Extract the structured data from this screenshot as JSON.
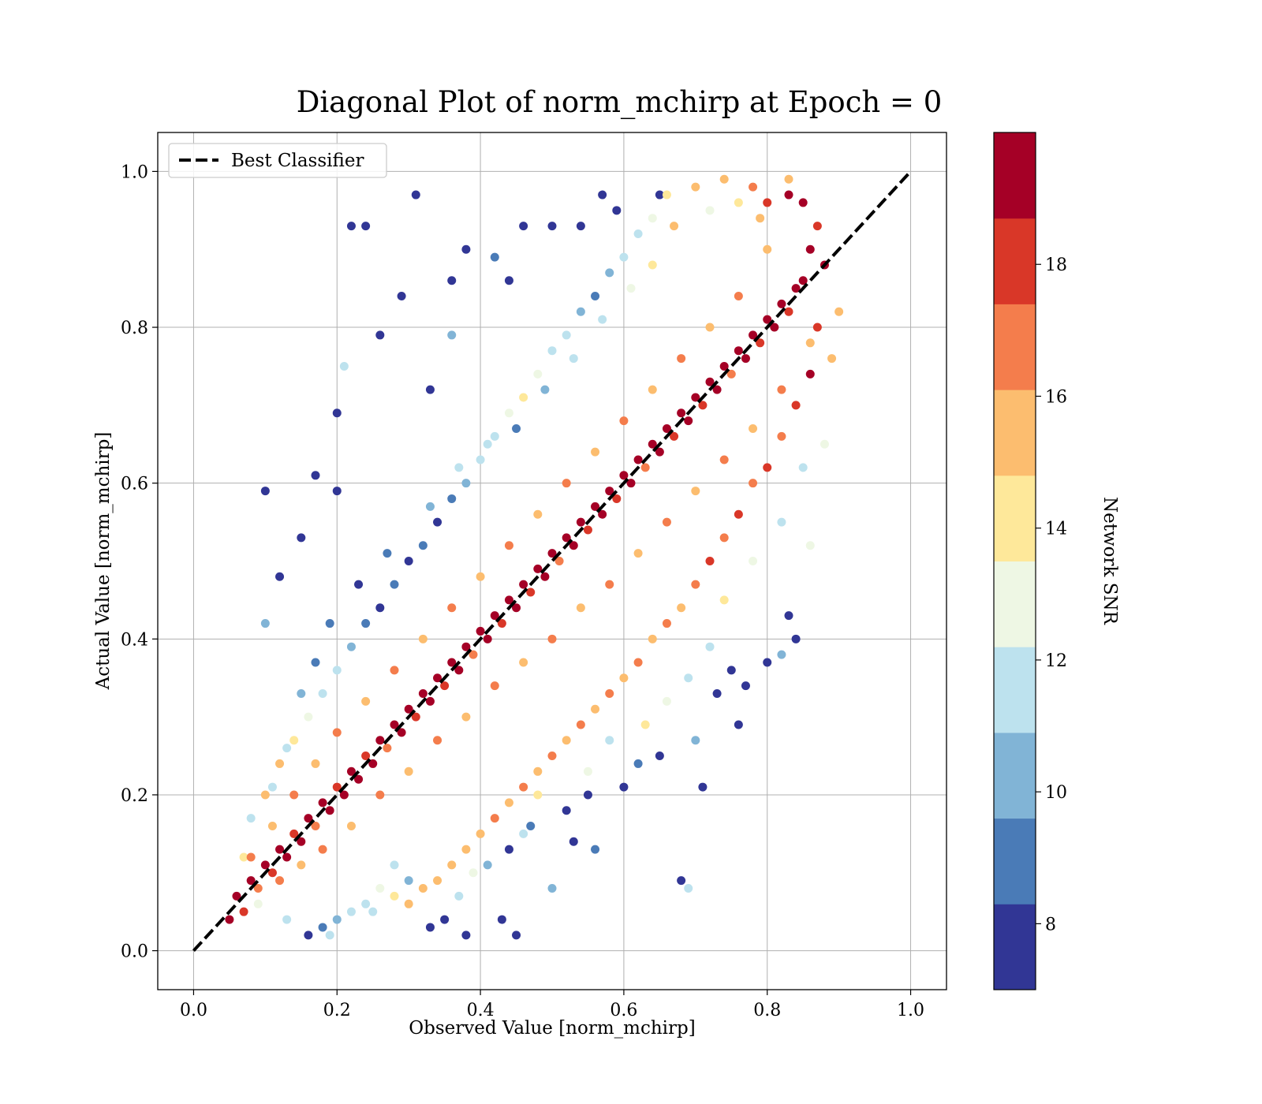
{
  "chart_data": {
    "type": "scatter",
    "title": "Diagonal Plot of norm_mchirp at Epoch = 0",
    "xlabel": "Observed Value [norm_mchirp]",
    "ylabel": "Actual Value [norm_mchirp]",
    "xlim": [
      -0.05,
      1.05
    ],
    "ylim": [
      -0.05,
      1.05
    ],
    "xticks": [
      "0.0",
      "0.2",
      "0.4",
      "0.6",
      "0.8",
      "1.0"
    ],
    "yticks": [
      "0.0",
      "0.2",
      "0.4",
      "0.6",
      "0.8",
      "1.0"
    ],
    "grid": true,
    "legend": {
      "placement": "top-left",
      "entries": [
        "Best Classifier"
      ]
    },
    "reference_line": {
      "name": "Best Classifier",
      "style": "dashed",
      "color": "#000000",
      "x": [
        0.0,
        1.0
      ],
      "y": [
        0.0,
        1.0
      ]
    },
    "colorbar": {
      "label": "Network SNR",
      "range": [
        7,
        20
      ],
      "ticks": [
        "8",
        "10",
        "12",
        "14",
        "16",
        "18"
      ],
      "tick_values": [
        8,
        10,
        12,
        14,
        16,
        18
      ],
      "levels": [
        {
          "from": 7.0,
          "to": 8.3,
          "color": "#313695"
        },
        {
          "from": 8.3,
          "to": 9.6,
          "color": "#4a7bb7"
        },
        {
          "from": 9.6,
          "to": 10.9,
          "color": "#81b4d6"
        },
        {
          "from": 10.9,
          "to": 12.2,
          "color": "#bde2ee"
        },
        {
          "from": 12.2,
          "to": 13.5,
          "color": "#eef7e4"
        },
        {
          "from": 13.5,
          "to": 14.8,
          "color": "#fee89a"
        },
        {
          "from": 14.8,
          "to": 16.1,
          "color": "#fcbd6f"
        },
        {
          "from": 16.1,
          "to": 17.4,
          "color": "#f47d4c"
        },
        {
          "from": 17.4,
          "to": 18.7,
          "color": "#d93728"
        },
        {
          "from": 18.7,
          "to": 20.0,
          "color": "#a50026"
        }
      ]
    },
    "points": [
      [
        0.05,
        0.04,
        19
      ],
      [
        0.06,
        0.07,
        19
      ],
      [
        0.07,
        0.05,
        18
      ],
      [
        0.08,
        0.09,
        19
      ],
      [
        0.09,
        0.08,
        17
      ],
      [
        0.1,
        0.11,
        19
      ],
      [
        0.11,
        0.1,
        18
      ],
      [
        0.12,
        0.13,
        19
      ],
      [
        0.13,
        0.12,
        19
      ],
      [
        0.14,
        0.15,
        18
      ],
      [
        0.15,
        0.14,
        19
      ],
      [
        0.16,
        0.17,
        19
      ],
      [
        0.17,
        0.16,
        17
      ],
      [
        0.18,
        0.19,
        19
      ],
      [
        0.19,
        0.18,
        19
      ],
      [
        0.2,
        0.21,
        18
      ],
      [
        0.21,
        0.2,
        19
      ],
      [
        0.22,
        0.23,
        19
      ],
      [
        0.23,
        0.22,
        19
      ],
      [
        0.24,
        0.25,
        18
      ],
      [
        0.25,
        0.24,
        19
      ],
      [
        0.26,
        0.27,
        19
      ],
      [
        0.27,
        0.26,
        17
      ],
      [
        0.28,
        0.29,
        19
      ],
      [
        0.29,
        0.28,
        19
      ],
      [
        0.3,
        0.31,
        19
      ],
      [
        0.31,
        0.3,
        18
      ],
      [
        0.32,
        0.33,
        19
      ],
      [
        0.33,
        0.32,
        19
      ],
      [
        0.34,
        0.35,
        19
      ],
      [
        0.35,
        0.34,
        18
      ],
      [
        0.36,
        0.37,
        19
      ],
      [
        0.37,
        0.36,
        19
      ],
      [
        0.38,
        0.39,
        19
      ],
      [
        0.39,
        0.38,
        17
      ],
      [
        0.4,
        0.41,
        19
      ],
      [
        0.41,
        0.4,
        19
      ],
      [
        0.42,
        0.43,
        19
      ],
      [
        0.43,
        0.42,
        18
      ],
      [
        0.44,
        0.45,
        19
      ],
      [
        0.45,
        0.44,
        19
      ],
      [
        0.46,
        0.47,
        19
      ],
      [
        0.47,
        0.46,
        18
      ],
      [
        0.48,
        0.49,
        19
      ],
      [
        0.49,
        0.48,
        19
      ],
      [
        0.5,
        0.51,
        19
      ],
      [
        0.51,
        0.5,
        17
      ],
      [
        0.52,
        0.53,
        19
      ],
      [
        0.53,
        0.52,
        19
      ],
      [
        0.54,
        0.55,
        19
      ],
      [
        0.55,
        0.54,
        18
      ],
      [
        0.56,
        0.57,
        19
      ],
      [
        0.57,
        0.56,
        19
      ],
      [
        0.58,
        0.59,
        19
      ],
      [
        0.59,
        0.58,
        18
      ],
      [
        0.6,
        0.61,
        19
      ],
      [
        0.61,
        0.6,
        19
      ],
      [
        0.62,
        0.63,
        19
      ],
      [
        0.63,
        0.62,
        17
      ],
      [
        0.64,
        0.65,
        19
      ],
      [
        0.65,
        0.64,
        19
      ],
      [
        0.66,
        0.67,
        19
      ],
      [
        0.67,
        0.66,
        18
      ],
      [
        0.68,
        0.69,
        19
      ],
      [
        0.69,
        0.68,
        19
      ],
      [
        0.7,
        0.71,
        19
      ],
      [
        0.71,
        0.7,
        18
      ],
      [
        0.72,
        0.73,
        19
      ],
      [
        0.73,
        0.72,
        19
      ],
      [
        0.74,
        0.75,
        19
      ],
      [
        0.75,
        0.74,
        17
      ],
      [
        0.76,
        0.77,
        19
      ],
      [
        0.77,
        0.76,
        19
      ],
      [
        0.78,
        0.79,
        19
      ],
      [
        0.79,
        0.78,
        18
      ],
      [
        0.8,
        0.81,
        19
      ],
      [
        0.81,
        0.8,
        19
      ],
      [
        0.82,
        0.83,
        19
      ],
      [
        0.83,
        0.82,
        18
      ],
      [
        0.84,
        0.85,
        19
      ],
      [
        0.85,
        0.86,
        19
      ],
      [
        0.86,
        0.9,
        19
      ],
      [
        0.87,
        0.93,
        18
      ],
      [
        0.85,
        0.96,
        19
      ],
      [
        0.83,
        0.97,
        19
      ],
      [
        0.88,
        0.88,
        19
      ],
      [
        0.87,
        0.8,
        18
      ],
      [
        0.86,
        0.74,
        19
      ],
      [
        0.84,
        0.7,
        18
      ],
      [
        0.82,
        0.66,
        17
      ],
      [
        0.8,
        0.62,
        18
      ],
      [
        0.78,
        0.6,
        17
      ],
      [
        0.76,
        0.56,
        18
      ],
      [
        0.74,
        0.53,
        17
      ],
      [
        0.72,
        0.5,
        18
      ],
      [
        0.7,
        0.47,
        17
      ],
      [
        0.68,
        0.44,
        16
      ],
      [
        0.66,
        0.42,
        17
      ],
      [
        0.64,
        0.4,
        16
      ],
      [
        0.62,
        0.37,
        17
      ],
      [
        0.6,
        0.35,
        16
      ],
      [
        0.58,
        0.33,
        17
      ],
      [
        0.56,
        0.31,
        16
      ],
      [
        0.54,
        0.29,
        17
      ],
      [
        0.52,
        0.27,
        16
      ],
      [
        0.5,
        0.25,
        17
      ],
      [
        0.48,
        0.23,
        16
      ],
      [
        0.46,
        0.21,
        17
      ],
      [
        0.44,
        0.19,
        16
      ],
      [
        0.42,
        0.17,
        17
      ],
      [
        0.4,
        0.15,
        16
      ],
      [
        0.38,
        0.13,
        15
      ],
      [
        0.36,
        0.11,
        16
      ],
      [
        0.34,
        0.09,
        15
      ],
      [
        0.32,
        0.08,
        16
      ],
      [
        0.3,
        0.06,
        15
      ],
      [
        0.28,
        0.07,
        14
      ],
      [
        0.26,
        0.08,
        13
      ],
      [
        0.24,
        0.06,
        12
      ],
      [
        0.22,
        0.05,
        11
      ],
      [
        0.2,
        0.04,
        10
      ],
      [
        0.18,
        0.03,
        9
      ],
      [
        0.16,
        0.02,
        8
      ],
      [
        0.1,
        0.2,
        16
      ],
      [
        0.12,
        0.24,
        15
      ],
      [
        0.14,
        0.27,
        14
      ],
      [
        0.16,
        0.3,
        13
      ],
      [
        0.18,
        0.33,
        12
      ],
      [
        0.2,
        0.36,
        11
      ],
      [
        0.22,
        0.39,
        10
      ],
      [
        0.24,
        0.42,
        9
      ],
      [
        0.26,
        0.44,
        8
      ],
      [
        0.28,
        0.47,
        9
      ],
      [
        0.3,
        0.5,
        8
      ],
      [
        0.32,
        0.52,
        9
      ],
      [
        0.34,
        0.55,
        8
      ],
      [
        0.36,
        0.58,
        9
      ],
      [
        0.38,
        0.6,
        10
      ],
      [
        0.4,
        0.63,
        11
      ],
      [
        0.42,
        0.66,
        12
      ],
      [
        0.44,
        0.69,
        13
      ],
      [
        0.46,
        0.71,
        14
      ],
      [
        0.48,
        0.74,
        13
      ],
      [
        0.5,
        0.77,
        12
      ],
      [
        0.52,
        0.79,
        11
      ],
      [
        0.54,
        0.82,
        10
      ],
      [
        0.56,
        0.84,
        9
      ],
      [
        0.58,
        0.87,
        10
      ],
      [
        0.6,
        0.89,
        11
      ],
      [
        0.62,
        0.92,
        12
      ],
      [
        0.64,
        0.94,
        13
      ],
      [
        0.66,
        0.97,
        14
      ],
      [
        0.7,
        0.98,
        15
      ],
      [
        0.74,
        0.99,
        16
      ],
      [
        0.78,
        0.98,
        17
      ],
      [
        0.8,
        0.96,
        18
      ],
      [
        0.1,
        0.59,
        8
      ],
      [
        0.17,
        0.61,
        8
      ],
      [
        0.2,
        0.69,
        8
      ],
      [
        0.22,
        0.93,
        8
      ],
      [
        0.24,
        0.93,
        8
      ],
      [
        0.31,
        0.97,
        8
      ],
      [
        0.38,
        0.9,
        8
      ],
      [
        0.36,
        0.86,
        8
      ],
      [
        0.29,
        0.84,
        8
      ],
      [
        0.26,
        0.79,
        8
      ],
      [
        0.33,
        0.72,
        8
      ],
      [
        0.21,
        0.75,
        11
      ],
      [
        0.2,
        0.59,
        8
      ],
      [
        0.15,
        0.53,
        8
      ],
      [
        0.12,
        0.48,
        8
      ],
      [
        0.1,
        0.42,
        10
      ],
      [
        0.44,
        0.86,
        8
      ],
      [
        0.46,
        0.93,
        8
      ],
      [
        0.5,
        0.93,
        8
      ],
      [
        0.54,
        0.93,
        8
      ],
      [
        0.57,
        0.97,
        8
      ],
      [
        0.59,
        0.95,
        8
      ],
      [
        0.65,
        0.97,
        8
      ],
      [
        0.42,
        0.89,
        9
      ],
      [
        0.36,
        0.79,
        10
      ],
      [
        0.68,
        0.09,
        8
      ],
      [
        0.69,
        0.08,
        11
      ],
      [
        0.71,
        0.21,
        8
      ],
      [
        0.76,
        0.29,
        8
      ],
      [
        0.77,
        0.34,
        8
      ],
      [
        0.8,
        0.37,
        8
      ],
      [
        0.83,
        0.43,
        8
      ],
      [
        0.84,
        0.4,
        8
      ],
      [
        0.82,
        0.38,
        10
      ],
      [
        0.75,
        0.36,
        8
      ],
      [
        0.73,
        0.33,
        8
      ],
      [
        0.7,
        0.27,
        10
      ],
      [
        0.65,
        0.25,
        8
      ],
      [
        0.62,
        0.24,
        9
      ],
      [
        0.6,
        0.21,
        8
      ],
      [
        0.55,
        0.2,
        8
      ],
      [
        0.52,
        0.18,
        8
      ],
      [
        0.53,
        0.14,
        8
      ],
      [
        0.56,
        0.13,
        9
      ],
      [
        0.5,
        0.08,
        10
      ],
      [
        0.45,
        0.02,
        8
      ],
      [
        0.43,
        0.04,
        8
      ],
      [
        0.38,
        0.02,
        8
      ],
      [
        0.35,
        0.04,
        8
      ],
      [
        0.33,
        0.03,
        8
      ],
      [
        0.3,
        0.09,
        10
      ],
      [
        0.28,
        0.11,
        12
      ],
      [
        0.44,
        0.13,
        8
      ],
      [
        0.47,
        0.16,
        9
      ],
      [
        0.41,
        0.11,
        10
      ],
      [
        0.86,
        0.52,
        13
      ],
      [
        0.88,
        0.65,
        13
      ],
      [
        0.9,
        0.82,
        15
      ],
      [
        0.89,
        0.76,
        15
      ],
      [
        0.85,
        0.62,
        12
      ],
      [
        0.82,
        0.55,
        11
      ],
      [
        0.78,
        0.5,
        13
      ],
      [
        0.74,
        0.45,
        14
      ],
      [
        0.72,
        0.39,
        12
      ],
      [
        0.69,
        0.35,
        11
      ],
      [
        0.66,
        0.32,
        13
      ],
      [
        0.63,
        0.29,
        14
      ],
      [
        0.58,
        0.27,
        12
      ],
      [
        0.55,
        0.23,
        13
      ],
      [
        0.48,
        0.2,
        14
      ],
      [
        0.46,
        0.15,
        12
      ],
      [
        0.39,
        0.1,
        13
      ],
      [
        0.37,
        0.07,
        11
      ],
      [
        0.25,
        0.05,
        12
      ],
      [
        0.19,
        0.02,
        11
      ],
      [
        0.13,
        0.04,
        12
      ],
      [
        0.09,
        0.06,
        13
      ],
      [
        0.07,
        0.12,
        14
      ],
      [
        0.08,
        0.17,
        12
      ],
      [
        0.11,
        0.21,
        11
      ],
      [
        0.13,
        0.26,
        12
      ],
      [
        0.15,
        0.33,
        10
      ],
      [
        0.17,
        0.37,
        9
      ],
      [
        0.19,
        0.42,
        9
      ],
      [
        0.23,
        0.47,
        8
      ],
      [
        0.27,
        0.51,
        9
      ],
      [
        0.33,
        0.57,
        10
      ],
      [
        0.37,
        0.62,
        11
      ],
      [
        0.41,
        0.65,
        12
      ],
      [
        0.45,
        0.67,
        9
      ],
      [
        0.49,
        0.72,
        10
      ],
      [
        0.53,
        0.76,
        12
      ],
      [
        0.57,
        0.81,
        11
      ],
      [
        0.61,
        0.85,
        13
      ],
      [
        0.64,
        0.88,
        14
      ],
      [
        0.67,
        0.93,
        15
      ],
      [
        0.72,
        0.95,
        13
      ],
      [
        0.76,
        0.96,
        14
      ],
      [
        0.79,
        0.94,
        16
      ],
      [
        0.83,
        0.99,
        15
      ],
      [
        0.12,
        0.09,
        17
      ],
      [
        0.15,
        0.11,
        16
      ],
      [
        0.18,
        0.13,
        17
      ],
      [
        0.22,
        0.16,
        16
      ],
      [
        0.26,
        0.2,
        17
      ],
      [
        0.3,
        0.23,
        16
      ],
      [
        0.34,
        0.27,
        17
      ],
      [
        0.38,
        0.3,
        16
      ],
      [
        0.42,
        0.34,
        17
      ],
      [
        0.46,
        0.37,
        16
      ],
      [
        0.5,
        0.4,
        17
      ],
      [
        0.54,
        0.44,
        16
      ],
      [
        0.58,
        0.47,
        17
      ],
      [
        0.62,
        0.51,
        16
      ],
      [
        0.66,
        0.55,
        17
      ],
      [
        0.7,
        0.59,
        16
      ],
      [
        0.74,
        0.63,
        17
      ],
      [
        0.78,
        0.67,
        16
      ],
      [
        0.82,
        0.72,
        17
      ],
      [
        0.86,
        0.78,
        16
      ],
      [
        0.08,
        0.12,
        17
      ],
      [
        0.11,
        0.16,
        16
      ],
      [
        0.14,
        0.2,
        17
      ],
      [
        0.17,
        0.24,
        16
      ],
      [
        0.2,
        0.28,
        17
      ],
      [
        0.24,
        0.32,
        16
      ],
      [
        0.28,
        0.36,
        17
      ],
      [
        0.32,
        0.4,
        16
      ],
      [
        0.36,
        0.44,
        17
      ],
      [
        0.4,
        0.48,
        16
      ],
      [
        0.44,
        0.52,
        17
      ],
      [
        0.48,
        0.56,
        16
      ],
      [
        0.52,
        0.6,
        17
      ],
      [
        0.56,
        0.64,
        16
      ],
      [
        0.6,
        0.68,
        17
      ],
      [
        0.64,
        0.72,
        16
      ],
      [
        0.68,
        0.76,
        17
      ],
      [
        0.72,
        0.8,
        16
      ],
      [
        0.76,
        0.84,
        17
      ],
      [
        0.8,
        0.9,
        16
      ]
    ]
  }
}
